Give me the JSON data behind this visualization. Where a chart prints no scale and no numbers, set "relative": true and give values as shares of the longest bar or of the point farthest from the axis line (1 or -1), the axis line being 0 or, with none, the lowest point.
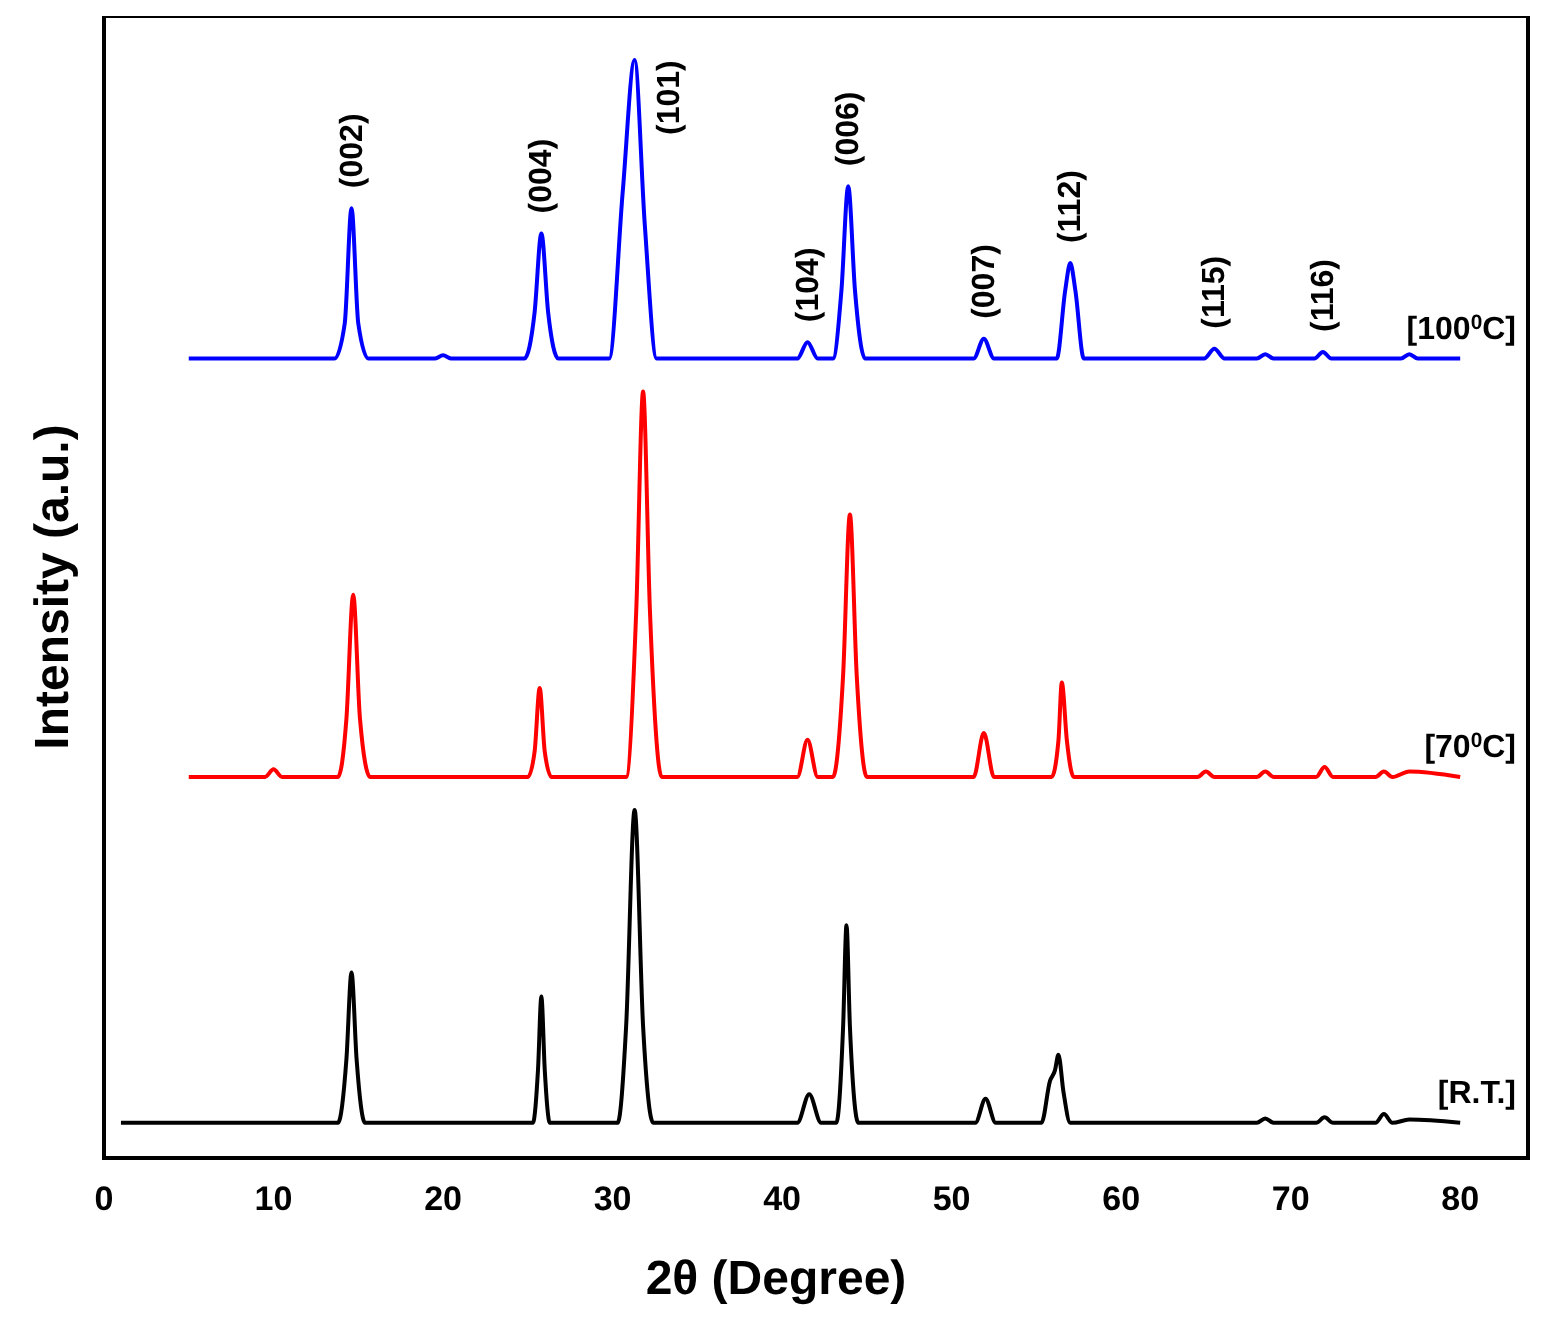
{
  "chart_data": {
    "type": "line",
    "relative": true,
    "xlabel": "2θ (Degree)",
    "ylabel": "Intensity (a.u.)",
    "xlim": [
      0,
      84
    ],
    "xticks": [
      0,
      10,
      20,
      30,
      40,
      50,
      60,
      70,
      80
    ],
    "grid": false,
    "marker": "none",
    "line_style": "solid",
    "series": [
      {
        "name": "[100$^{0}$C]",
        "color": "#0000ff",
        "x": [
          5,
          13.6,
          14.2,
          14.6,
          15.0,
          15.6,
          19.5,
          20,
          20.5,
          24.8,
          25.4,
          25.8,
          26.2,
          26.8,
          29.8,
          30.6,
          31.3,
          31.9,
          32.6,
          40.9,
          41.5,
          42.1,
          43.0,
          43.5,
          43.9,
          44.3,
          44.9,
          51.3,
          51.9,
          52.5,
          56.2,
          56.7,
          57.0,
          57.3,
          57.8,
          64.9,
          65.5,
          66.1,
          68.0,
          68.5,
          69.0,
          71.4,
          71.9,
          72.4,
          76.5,
          77,
          77.5,
          80
        ],
        "values": [
          0.728,
          0.728,
          0.76,
          0.865,
          0.76,
          0.728,
          0.728,
          0.731,
          0.728,
          0.728,
          0.77,
          0.842,
          0.77,
          0.728,
          0.728,
          0.88,
          1.0,
          0.85,
          0.728,
          0.728,
          0.743,
          0.728,
          0.728,
          0.79,
          0.885,
          0.79,
          0.728,
          0.728,
          0.746,
          0.728,
          0.728,
          0.79,
          0.815,
          0.79,
          0.728,
          0.728,
          0.737,
          0.728,
          0.728,
          0.732,
          0.728,
          0.728,
          0.734,
          0.728,
          0.728,
          0.732,
          0.728,
          0.728
        ]
      },
      {
        "name": "[70$^{0}$C]",
        "color": "#ff0000",
        "x": [
          5,
          9.5,
          10.0,
          10.5,
          13.8,
          14.3,
          14.7,
          15.1,
          15.7,
          25.0,
          25.4,
          25.7,
          26.0,
          26.4,
          30.8,
          31.4,
          31.8,
          32.2,
          32.9,
          40.9,
          41.5,
          42.1,
          43.0,
          43.6,
          44.0,
          44.4,
          45.0,
          51.3,
          51.9,
          52.5,
          55.9,
          56.3,
          56.5,
          56.8,
          57.2,
          64.5,
          65,
          65.5,
          68,
          68.5,
          69,
          71.5,
          72,
          72.5,
          75,
          75.5,
          76,
          77,
          80
        ],
        "values": [
          0.347,
          0.347,
          0.354,
          0.347,
          0.347,
          0.4,
          0.513,
          0.4,
          0.347,
          0.347,
          0.37,
          0.428,
          0.37,
          0.347,
          0.347,
          0.5,
          0.698,
          0.5,
          0.347,
          0.347,
          0.381,
          0.347,
          0.347,
          0.44,
          0.586,
          0.44,
          0.347,
          0.347,
          0.387,
          0.347,
          0.347,
          0.38,
          0.433,
          0.38,
          0.347,
          0.347,
          0.352,
          0.347,
          0.347,
          0.352,
          0.347,
          0.347,
          0.356,
          0.347,
          0.347,
          0.352,
          0.347,
          0.352,
          0.347
        ]
      },
      {
        "name": "[R.T.]",
        "color": "#000000",
        "x": [
          1,
          13.8,
          14.3,
          14.6,
          14.9,
          15.4,
          25.3,
          25.6,
          25.8,
          26.0,
          26.3,
          30.3,
          30.8,
          31.3,
          31.8,
          32.4,
          40.9,
          41.6,
          42.3,
          43.2,
          43.6,
          43.8,
          44.0,
          44.5,
          51.4,
          52.0,
          52.6,
          55.3,
          55.8,
          56.1,
          56.3,
          56.6,
          57.0,
          68,
          68.5,
          69,
          71.5,
          72,
          72.5,
          75,
          75.5,
          76,
          77,
          80
        ],
        "values": [
          0.032,
          0.032,
          0.09,
          0.169,
          0.09,
          0.032,
          0.032,
          0.08,
          0.147,
          0.08,
          0.032,
          0.032,
          0.12,
          0.317,
          0.12,
          0.032,
          0.032,
          0.058,
          0.032,
          0.032,
          0.12,
          0.212,
          0.12,
          0.032,
          0.032,
          0.054,
          0.032,
          0.032,
          0.07,
          0.08,
          0.094,
          0.06,
          0.032,
          0.032,
          0.036,
          0.032,
          0.032,
          0.037,
          0.032,
          0.032,
          0.04,
          0.032,
          0.035,
          0.032
        ]
      }
    ],
    "annotations": [
      {
        "text": "(002)",
        "x": 14.6,
        "y": 0.865
      },
      {
        "text": "(004)",
        "x": 25.8,
        "y": 0.842
      },
      {
        "text": "(101)",
        "x": 31.3,
        "y": 1.0
      },
      {
        "text": "(104)",
        "x": 41.5,
        "y": 0.743
      },
      {
        "text": "(006)",
        "x": 43.9,
        "y": 0.885
      },
      {
        "text": "(007)",
        "x": 51.9,
        "y": 0.746
      },
      {
        "text": "(112)",
        "x": 57.0,
        "y": 0.815
      },
      {
        "text": "(115)",
        "x": 65.5,
        "y": 0.737
      },
      {
        "text": "(116)",
        "x": 71.9,
        "y": 0.734
      }
    ]
  }
}
